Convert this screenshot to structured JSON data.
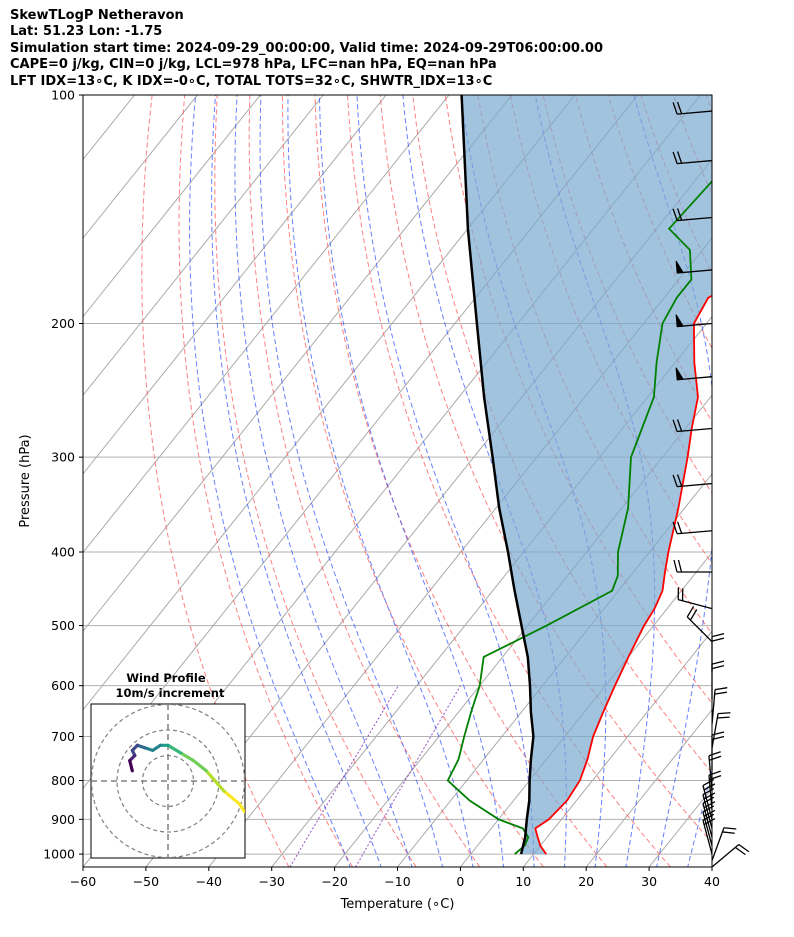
{
  "header": {
    "line1": "SkewTLogP Netheravon",
    "line2": "Lat: 51.23   Lon: -1.75",
    "line3": "Simulation start time: 2024-09-29_00:00:00, Valid time: 2024-09-29T06:00:00.00",
    "line4": "CAPE=0 j/kg, CIN=0 j/kg, LCL=978 hPa, LFC=nan hPa, EQ=nan hPa",
    "line5": "LFT IDX=13∘C, K IDX=-0∘C, TOTAL TOTS=32∘C, SHWTR_IDX=13∘C"
  },
  "chart_data": [
    {
      "type": "line",
      "title": "",
      "xlabel": "Temperature (∘C)",
      "ylabel": "Pressure (hPa)",
      "x_scale": "linear (skewed)",
      "y_scale": "log",
      "xlim": [
        -60,
        40
      ],
      "ylim": [
        1040,
        100
      ],
      "xticks": [
        "−60",
        "−50",
        "−40",
        "−30",
        "−20",
        "−10",
        "0",
        "10",
        "20",
        "30",
        "40"
      ],
      "yticks": [
        "100",
        "200",
        "300",
        "400",
        "500",
        "600",
        "700",
        "800",
        "900",
        "1000"
      ],
      "grid": true,
      "colors": {
        "temperature": "#ff0000",
        "dewpoint": "#008000",
        "parcel": "#000000",
        "cin_shade": "#7aaad0",
        "dry_adiabats": "#ff5555",
        "moist_adiabats": "#3355ff",
        "mixing_ratio": "#7722bb"
      },
      "series": [
        {
          "name": "",
          "role": "temperature",
          "points": [
            [
              1000,
              12
            ],
            [
              975,
              10
            ],
            [
              950,
              8.5
            ],
            [
              925,
              7
            ],
            [
              900,
              8
            ],
            [
              850,
              8.5
            ],
            [
              800,
              8
            ],
            [
              750,
              6.5
            ],
            [
              700,
              4.5
            ],
            [
              650,
              3
            ],
            [
              600,
              1.5
            ],
            [
              550,
              0
            ],
            [
              500,
              -1.5
            ],
            [
              475,
              -2
            ],
            [
              450,
              -3
            ],
            [
              425,
              -5
            ],
            [
              400,
              -7
            ],
            [
              350,
              -11
            ],
            [
              300,
              -16
            ],
            [
              275,
              -19
            ],
            [
              250,
              -22
            ],
            [
              225,
              -27
            ],
            [
              200,
              -32
            ],
            [
              185,
              -33
            ],
            [
              175,
              -30
            ],
            [
              160,
              -31
            ],
            [
              150,
              -35
            ],
            [
              140,
              -39
            ],
            [
              125,
              -44
            ],
            [
              115,
              -48
            ],
            [
              105,
              -50
            ],
            [
              100,
              -51
            ]
          ]
        },
        {
          "name": "",
          "role": "dewpoint",
          "points": [
            [
              1000,
              7
            ],
            [
              975,
              7.5
            ],
            [
              950,
              7
            ],
            [
              925,
              5
            ],
            [
              900,
              0
            ],
            [
              850,
              -7
            ],
            [
              800,
              -13
            ],
            [
              750,
              -14
            ],
            [
              700,
              -16
            ],
            [
              650,
              -18
            ],
            [
              600,
              -20
            ],
            [
              550,
              -23
            ],
            [
              500,
              -17
            ],
            [
              450,
              -11
            ],
            [
              430,
              -12
            ],
            [
              400,
              -15
            ],
            [
              350,
              -19
            ],
            [
              300,
              -25
            ],
            [
              250,
              -29
            ],
            [
              225,
              -33
            ],
            [
              200,
              -37
            ],
            [
              185,
              -38
            ],
            [
              175,
              -38
            ],
            [
              160,
              -42
            ],
            [
              150,
              -48
            ],
            [
              125,
              -47
            ],
            [
              115,
              -50
            ],
            [
              100,
              -57
            ]
          ]
        },
        {
          "name": "",
          "role": "parcel",
          "points": [
            [
              1000,
              8
            ],
            [
              950,
              6.5
            ],
            [
              900,
              4.5
            ],
            [
              850,
              2.5
            ],
            [
              800,
              0
            ],
            [
              750,
              -2.5
            ],
            [
              700,
              -5
            ],
            [
              650,
              -8.5
            ],
            [
              600,
              -12
            ],
            [
              550,
              -16
            ],
            [
              500,
              -21
            ],
            [
              450,
              -26.5
            ],
            [
              400,
              -32.5
            ],
            [
              350,
              -39.5
            ],
            [
              300,
              -47
            ],
            [
              250,
              -56
            ],
            [
              200,
              -66.5
            ],
            [
              150,
              -80
            ],
            [
              100,
              -98
            ]
          ]
        }
      ],
      "wind_barbs": [
        {
          "p": 1040,
          "spd": 20,
          "dir": 50
        },
        {
          "p": 1020,
          "spd": 20,
          "dir": 20
        },
        {
          "p": 1000,
          "spd": 20,
          "dir": 345
        },
        {
          "p": 975,
          "spd": 20,
          "dir": 345
        },
        {
          "p": 950,
          "spd": 20,
          "dir": 345
        },
        {
          "p": 925,
          "spd": 20,
          "dir": 345
        },
        {
          "p": 900,
          "spd": 20,
          "dir": 345
        },
        {
          "p": 875,
          "spd": 20,
          "dir": 355
        },
        {
          "p": 825,
          "spd": 20,
          "dir": 355
        },
        {
          "p": 775,
          "spd": 20,
          "dir": 0
        },
        {
          "p": 725,
          "spd": 20,
          "dir": 10
        },
        {
          "p": 675,
          "spd": 20,
          "dir": 5
        },
        {
          "p": 625,
          "spd": 20,
          "dir": 0
        },
        {
          "p": 575,
          "spd": 20,
          "dir": 0
        },
        {
          "p": 525,
          "spd": 20,
          "dir": 315
        },
        {
          "p": 475,
          "spd": 20,
          "dir": 285
        },
        {
          "p": 425,
          "spd": 20,
          "dir": 270
        },
        {
          "p": 375,
          "spd": 20,
          "dir": 265
        },
        {
          "p": 325,
          "spd": 20,
          "dir": 265
        },
        {
          "p": 275,
          "spd": 20,
          "dir": 265
        },
        {
          "p": 235,
          "spd": 50,
          "dir": 265
        },
        {
          "p": 200,
          "spd": 50,
          "dir": 265
        },
        {
          "p": 170,
          "spd": 50,
          "dir": 265
        },
        {
          "p": 145,
          "spd": 20,
          "dir": 265
        },
        {
          "p": 122,
          "spd": 20,
          "dir": 265
        },
        {
          "p": 105,
          "spd": 20,
          "dir": 265
        }
      ]
    },
    {
      "type": "line",
      "title": "Wind Profile",
      "subtitle": "10m/s increment",
      "rings_ms": [
        10,
        20,
        30
      ],
      "colormap": "viridis",
      "hodograph_uv": [
        [
          30,
          -12
        ],
        [
          28,
          -9
        ],
        [
          22,
          -4
        ],
        [
          15,
          4
        ],
        [
          10,
          8
        ],
        [
          5,
          11
        ],
        [
          0,
          14
        ],
        [
          -3,
          14
        ],
        [
          -6,
          12
        ],
        [
          -9,
          13
        ],
        [
          -12,
          14
        ],
        [
          -14,
          12
        ],
        [
          -13,
          10
        ],
        [
          -15,
          8
        ],
        [
          -14,
          4
        ]
      ]
    }
  ]
}
